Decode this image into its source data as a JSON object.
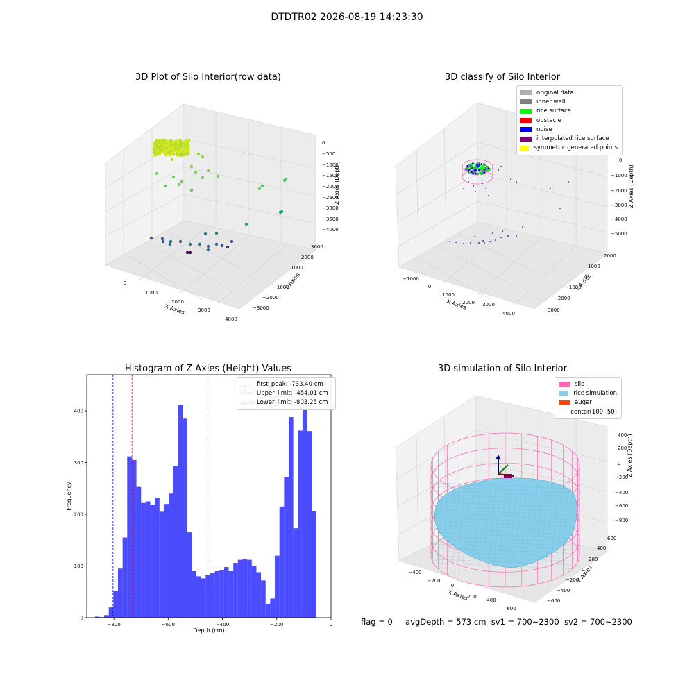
{
  "figure": {
    "suptitle": "DTDTR02 2026-08-19 14:23:30",
    "footer": {
      "flag": "flag = 0",
      "avg_depth": "avgDepth = 573 cm",
      "sv1": "sv1 = 700~2300",
      "sv2": "sv2 = 700~2300"
    }
  },
  "panels": {
    "raw": {
      "title": "3D Plot of Silo Interior(row data)",
      "xlabel": "X Axies",
      "ylabel": "Y Axies",
      "zlabel": "Z Axies (Depth)",
      "xticks": [
        "0",
        "1000",
        "2000",
        "3000",
        "4000"
      ],
      "yticks": [
        "3000",
        "2000",
        "1000",
        "−1000",
        "−2000",
        "−3000"
      ],
      "zticks": [
        "0",
        "−500",
        "−1000",
        "−1500",
        "−2000",
        "−2500",
        "−3000",
        "−3500",
        "−4000"
      ]
    },
    "classify": {
      "title": "3D classify of Silo Interior",
      "xlabel": "X Axies",
      "ylabel": "Y Axies",
      "zlabel": "Z Axies (Depth)",
      "xticks": [
        "−1000",
        "0",
        "1000",
        "2000",
        "3000",
        "4000"
      ],
      "yticks": [
        "2000",
        "1000",
        "0",
        "−1000",
        "−2000",
        "−3000"
      ],
      "zticks": [
        "0",
        "−1000",
        "−2000",
        "−3000",
        "−4000",
        "−5000"
      ],
      "legend": [
        {
          "label": "original data",
          "color": "#b0b0b0"
        },
        {
          "label": "inner wall",
          "color": "#808080"
        },
        {
          "label": "rice surface",
          "color": "#00ff00"
        },
        {
          "label": "obstacle",
          "color": "#ff0000"
        },
        {
          "label": "noise",
          "color": "#0000ff"
        },
        {
          "label": "interpolated rice surface",
          "color": "#800080"
        },
        {
          "label": "symmetric generated points",
          "color": "#ffff00"
        }
      ]
    },
    "simulation": {
      "title": "3D simulation of Silo Interior",
      "xlabel": "X Axies",
      "ylabel": "Y Axies",
      "zlabel": "Z Axies (Depth)",
      "xticks": [
        "−400",
        "−200",
        "0",
        "200",
        "400",
        "600"
      ],
      "yticks": [
        "600",
        "400",
        "200",
        "0",
        "−200",
        "−400",
        "−600"
      ],
      "zticks": [
        "400",
        "200",
        "0",
        "−200",
        "−400",
        "−600",
        "−800"
      ],
      "legend": [
        {
          "label": "silo",
          "color": "#ff69b4"
        },
        {
          "label": "rice simulation",
          "color": "#87ceeb"
        },
        {
          "label": "auger",
          "color": "#ff4500"
        },
        {
          "label": "center(100,-50)",
          "color": ""
        }
      ]
    }
  },
  "chart_data": {
    "type": "bar",
    "title": "Histogram of Z-Axies (Height) Values",
    "xlabel": "Depth (cm)",
    "ylabel": "Frequency",
    "xlim": [
      -900,
      0
    ],
    "ylim": [
      0,
      470
    ],
    "xticks": [
      -800,
      -600,
      -400,
      -200,
      0
    ],
    "yticks": [
      0,
      100,
      200,
      300,
      400
    ],
    "bar_color": "#0000ff",
    "bins": [
      {
        "x0": -870,
        "x1": -853,
        "value": 2
      },
      {
        "x0": -853,
        "x1": -836,
        "value": 1
      },
      {
        "x0": -836,
        "x1": -819,
        "value": 5
      },
      {
        "x0": -819,
        "x1": -802,
        "value": 20
      },
      {
        "x0": -802,
        "x1": -785,
        "value": 52
      },
      {
        "x0": -785,
        "x1": -768,
        "value": 95
      },
      {
        "x0": -768,
        "x1": -751,
        "value": 155
      },
      {
        "x0": -751,
        "x1": -734,
        "value": 312
      },
      {
        "x0": -734,
        "x1": -717,
        "value": 305
      },
      {
        "x0": -717,
        "x1": -700,
        "value": 253
      },
      {
        "x0": -700,
        "x1": -683,
        "value": 222
      },
      {
        "x0": -683,
        "x1": -666,
        "value": 225
      },
      {
        "x0": -666,
        "x1": -649,
        "value": 218
      },
      {
        "x0": -649,
        "x1": -632,
        "value": 232
      },
      {
        "x0": -632,
        "x1": -615,
        "value": 205
      },
      {
        "x0": -615,
        "x1": -598,
        "value": 220
      },
      {
        "x0": -598,
        "x1": -581,
        "value": 240
      },
      {
        "x0": -581,
        "x1": -564,
        "value": 293
      },
      {
        "x0": -564,
        "x1": -547,
        "value": 412
      },
      {
        "x0": -547,
        "x1": -530,
        "value": 385
      },
      {
        "x0": -530,
        "x1": -513,
        "value": 165
      },
      {
        "x0": -513,
        "x1": -496,
        "value": 90
      },
      {
        "x0": -496,
        "x1": -479,
        "value": 80
      },
      {
        "x0": -479,
        "x1": -462,
        "value": 76
      },
      {
        "x0": -462,
        "x1": -445,
        "value": 82
      },
      {
        "x0": -445,
        "x1": -428,
        "value": 87
      },
      {
        "x0": -428,
        "x1": -411,
        "value": 90
      },
      {
        "x0": -411,
        "x1": -394,
        "value": 92
      },
      {
        "x0": -394,
        "x1": -377,
        "value": 98
      },
      {
        "x0": -377,
        "x1": -360,
        "value": 90
      },
      {
        "x0": -360,
        "x1": -343,
        "value": 106
      },
      {
        "x0": -343,
        "x1": -326,
        "value": 112
      },
      {
        "x0": -326,
        "x1": -309,
        "value": 113
      },
      {
        "x0": -309,
        "x1": -292,
        "value": 112
      },
      {
        "x0": -292,
        "x1": -275,
        "value": 100
      },
      {
        "x0": -275,
        "x1": -258,
        "value": 88
      },
      {
        "x0": -258,
        "x1": -241,
        "value": 72
      },
      {
        "x0": -241,
        "x1": -224,
        "value": 27
      },
      {
        "x0": -224,
        "x1": -207,
        "value": 37
      },
      {
        "x0": -207,
        "x1": -190,
        "value": 120
      },
      {
        "x0": -190,
        "x1": -173,
        "value": 215
      },
      {
        "x0": -173,
        "x1": -156,
        "value": 272
      },
      {
        "x0": -156,
        "x1": -139,
        "value": 388
      },
      {
        "x0": -139,
        "x1": -122,
        "value": 173
      },
      {
        "x0": -122,
        "x1": -105,
        "value": 362
      },
      {
        "x0": -105,
        "x1": -88,
        "value": 446
      },
      {
        "x0": -88,
        "x1": -71,
        "value": 361
      },
      {
        "x0": -71,
        "x1": -54,
        "value": 206
      }
    ],
    "vlines": [
      {
        "label": "first_peak: -733.40 cm",
        "x": -733.4,
        "color": "#ff0000"
      },
      {
        "label": "Upper_limit: -454.01 cm",
        "x": -454.01,
        "color": "#0000ff"
      },
      {
        "label": "Lower_limit: -803.25 cm",
        "x": -803.25,
        "color": "#0000ff"
      }
    ]
  }
}
